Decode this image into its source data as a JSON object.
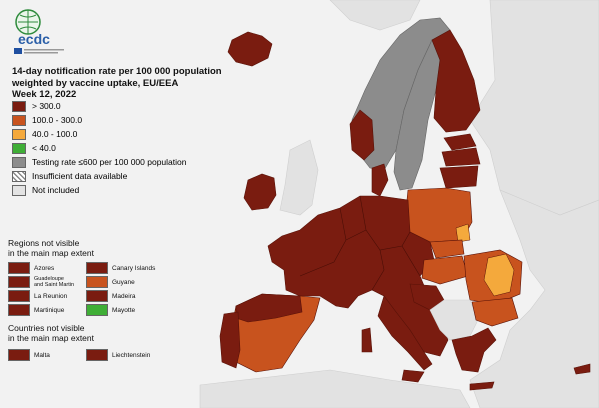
{
  "logo": {
    "text": "ecdc",
    "icon": "ecdc-globe-logo"
  },
  "title": {
    "line1": "14-day notification rate per 100 000 population",
    "line2": "weighted by vaccine uptake, EU/EEA",
    "line3": "Week 12, 2022"
  },
  "legend": [
    {
      "label": "> 300.0",
      "color": "#7a1c10"
    },
    {
      "label": "100.0 - 300.0",
      "color": "#c8531e"
    },
    {
      "label": "40.0 - 100.0",
      "color": "#f4a93c"
    },
    {
      "label": "< 40.0",
      "color": "#3fae36"
    },
    {
      "label": "Testing rate ≤600 per 100 000 population",
      "color": "#8c8c8c"
    },
    {
      "label": "Insufficient data available",
      "color": "hatched"
    },
    {
      "label": "Not included",
      "color": "#e3e3e3"
    }
  ],
  "regions_title": "Regions not visible\nin the main map extent",
  "regions": [
    {
      "label": "Azores",
      "color": "#7a1c10"
    },
    {
      "label": "Canary Islands",
      "color": "#7a1c10"
    },
    {
      "label": "Guadeloupe\nand Saint Martin",
      "color": "#7a1c10"
    },
    {
      "label": "Guyane",
      "color": "#c8531e"
    },
    {
      "label": "La Reunion",
      "color": "#7a1c10"
    },
    {
      "label": "Madeira",
      "color": "#7a1c10"
    },
    {
      "label": "Martinique",
      "color": "#7a1c10"
    },
    {
      "label": "Mayotte",
      "color": "#3fae36"
    }
  ],
  "countries_title": "Countries not visible\nin the main map extent",
  "countries": [
    {
      "label": "Malta",
      "color": "#7a1c10"
    },
    {
      "label": "Liechtenstein",
      "color": "#7a1c10"
    }
  ],
  "colors": {
    "sea": "#f2f2f2",
    "not_included": "#e0e0e0",
    "dark_red": "#7a1c10",
    "orange": "#c8531e",
    "yellow": "#f4a93c",
    "grey": "#8c8c8c",
    "border": "#5a1208"
  }
}
